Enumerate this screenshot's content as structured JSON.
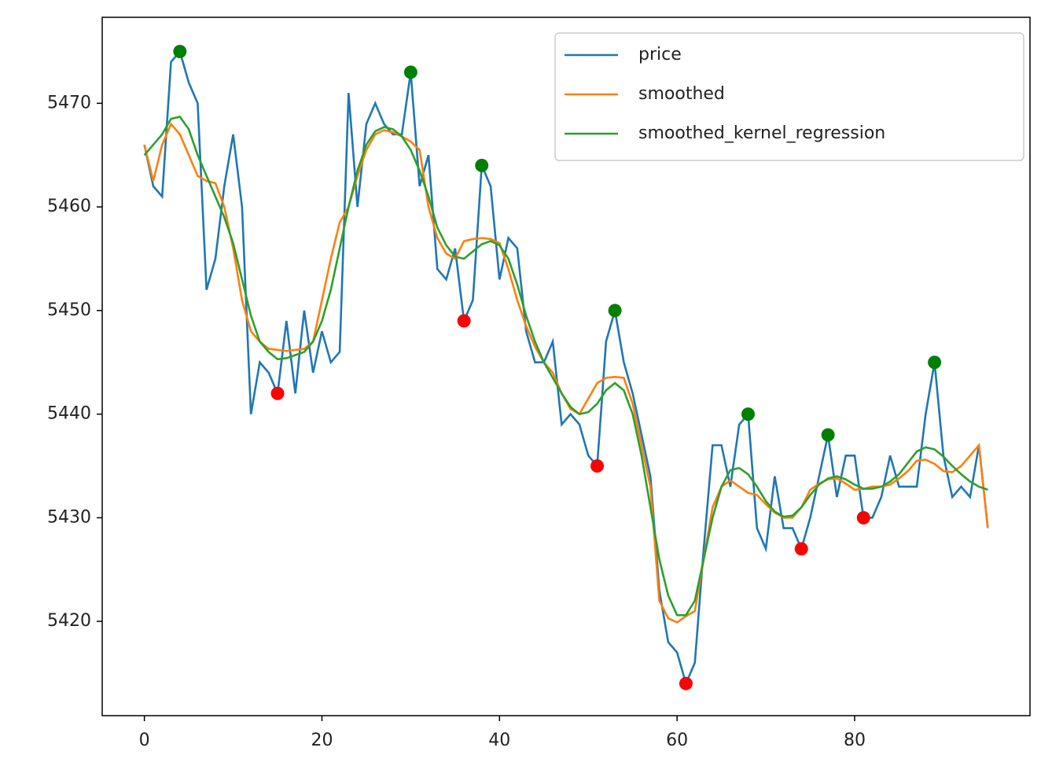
{
  "chart_data": {
    "type": "line",
    "x": [
      0,
      1,
      2,
      3,
      4,
      5,
      6,
      7,
      8,
      9,
      10,
      11,
      12,
      13,
      14,
      15,
      16,
      17,
      18,
      19,
      20,
      21,
      22,
      23,
      24,
      25,
      26,
      27,
      28,
      29,
      30,
      31,
      32,
      33,
      34,
      35,
      36,
      37,
      38,
      39,
      40,
      41,
      42,
      43,
      44,
      45,
      46,
      47,
      48,
      49,
      50,
      51,
      52,
      53,
      54,
      55,
      56,
      57,
      58,
      59,
      60,
      61,
      62,
      63,
      64,
      65,
      66,
      67,
      68,
      69,
      70,
      71,
      72,
      73,
      74,
      75,
      76,
      77,
      78,
      79,
      80,
      81,
      82,
      83,
      84,
      85,
      86,
      87,
      88,
      89,
      90,
      91,
      92,
      93,
      94,
      95
    ],
    "series": [
      {
        "name": "price",
        "color": "#1f77b4",
        "values": [
          5466,
          5462,
          5461,
          5474,
          5475,
          5472,
          5470,
          5452,
          5455,
          5462,
          5467,
          5460,
          5440,
          5445,
          5444,
          5442,
          5449,
          5442,
          5450,
          5444,
          5448,
          5445,
          5446,
          5471,
          5460,
          5468,
          5470,
          5468,
          5467,
          5467,
          5473,
          5462,
          5465,
          5454,
          5453,
          5456,
          5449,
          5451,
          5464,
          5462,
          5453,
          5457,
          5456,
          5448,
          5445,
          5445,
          5447,
          5439,
          5440,
          5439,
          5436,
          5435,
          5447,
          5450,
          5445,
          5442,
          5438,
          5434,
          5423,
          5418,
          5417,
          5414,
          5416,
          5427,
          5437,
          5437,
          5433,
          5439,
          5440,
          5429,
          5427,
          5434,
          5429,
          5429,
          5427,
          5430,
          5434,
          5438,
          5432,
          5436,
          5436,
          5430,
          5430,
          5432,
          5436,
          5433,
          5433,
          5433,
          5440,
          5445,
          5436,
          5432,
          5433,
          5432,
          5437,
          5429
        ]
      },
      {
        "name": "smoothed",
        "color": "#ff7f0e",
        "values": [
          5466,
          5462.5,
          5466,
          5468,
          5467,
          5465,
          5463,
          5462.5,
          5462.3,
          5460,
          5456,
          5451,
          5448,
          5447,
          5446.3,
          5446.2,
          5446.1,
          5446.2,
          5446.3,
          5447,
          5451,
          5455,
          5458.5,
          5460,
          5463,
          5465.5,
          5467,
          5467.4,
          5467.2,
          5466.8,
          5466.3,
          5465.5,
          5460,
          5457,
          5455.5,
          5455,
          5456.7,
          5456.9,
          5457,
          5456.9,
          5456.5,
          5454,
          5451,
          5448.5,
          5446.5,
          5445,
          5444,
          5442,
          5440.5,
          5440,
          5441.5,
          5443,
          5443.5,
          5443.6,
          5443.5,
          5441,
          5437,
          5433,
          5422,
          5420.3,
          5419.9,
          5420.5,
          5421,
          5426,
          5431,
          5433,
          5433.6,
          5433,
          5432.4,
          5432.2,
          5431.3,
          5430.5,
          5430,
          5430,
          5431,
          5432.7,
          5433.3,
          5433.7,
          5433.8,
          5433.3,
          5432.7,
          5432.8,
          5433,
          5433,
          5433.2,
          5433.8,
          5434.5,
          5435.5,
          5435.6,
          5435.2,
          5434.5,
          5434.4,
          5435,
          5436,
          5437,
          5429
        ]
      },
      {
        "name": "smoothed_kernel_regression",
        "color": "#2ca02c",
        "values": [
          5465,
          5466,
          5467,
          5468.5,
          5468.7,
          5467.5,
          5465,
          5463,
          5461,
          5459,
          5456.5,
          5453,
          5449.5,
          5447,
          5446,
          5445.3,
          5445.4,
          5445.7,
          5446,
          5447,
          5449,
          5452,
          5456,
          5460,
          5463.5,
          5466,
          5467.3,
          5467.7,
          5467.5,
          5466.8,
          5465.5,
          5463.5,
          5461,
          5458,
          5456.3,
          5455.2,
          5455,
          5455.7,
          5456.4,
          5456.7,
          5456.3,
          5455,
          5452.5,
          5449.5,
          5447,
          5445,
          5443.5,
          5442,
          5440.7,
          5440,
          5440.2,
          5441,
          5442.3,
          5443,
          5442.3,
          5440,
          5436,
          5431,
          5426,
          5422.5,
          5420.6,
          5420.6,
          5422,
          5426,
          5430,
          5433,
          5434.6,
          5434.8,
          5434.2,
          5433,
          5431.6,
          5430.6,
          5430.1,
          5430.2,
          5431,
          5432.2,
          5433.2,
          5433.8,
          5434,
          5433.7,
          5433.2,
          5432.8,
          5432.8,
          5433,
          5433.5,
          5434.2,
          5435.3,
          5436.4,
          5436.8,
          5436.6,
          5435.9,
          5435,
          5434.2,
          5433.5,
          5433,
          5432.7
        ]
      }
    ],
    "markers": [
      {
        "color": "green",
        "x": [
          4,
          30,
          38,
          53,
          68,
          77,
          89
        ],
        "values": [
          5475,
          5473,
          5464,
          5450,
          5440,
          5438,
          5445
        ]
      },
      {
        "color": "red",
        "x": [
          15,
          36,
          51,
          61,
          74,
          81
        ],
        "values": [
          5442,
          5449,
          5435,
          5414,
          5427,
          5430
        ]
      }
    ],
    "xlim": [
      -4.75,
      99.75
    ],
    "xticks": [
      0,
      20,
      40,
      60,
      80
    ],
    "ylim": [
      5410.9,
      5478.3
    ],
    "yticks": [
      5420,
      5430,
      5440,
      5450,
      5460,
      5470
    ],
    "legend": "upper right"
  }
}
